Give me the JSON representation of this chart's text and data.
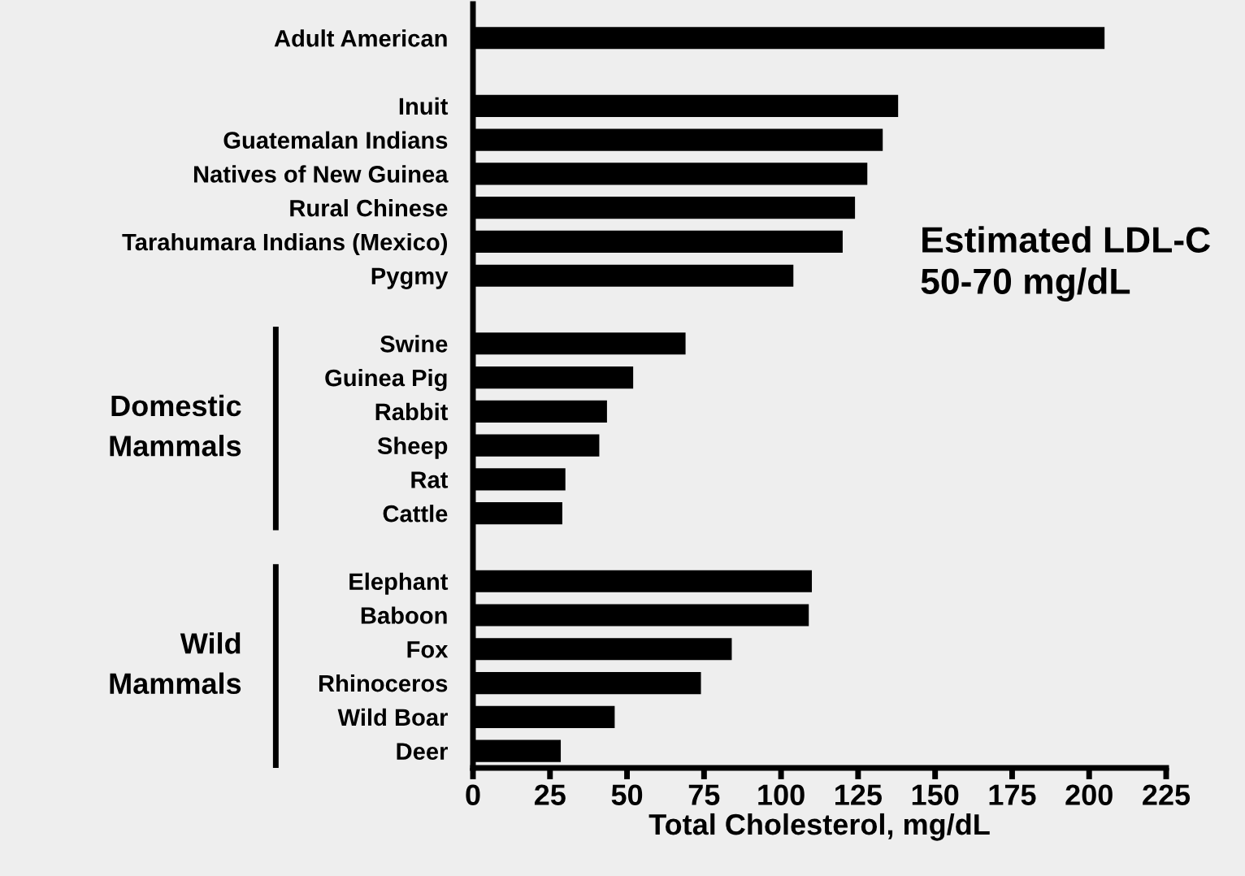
{
  "chart_data": {
    "type": "bar",
    "orientation": "horizontal",
    "xlabel": "Total Cholesterol, mg/dL",
    "categories": [
      "Adult American",
      null,
      "Inuit",
      "Guatemalan Indians",
      "Natives of New Guinea",
      "Rural Chinese",
      "Tarahumara Indians (Mexico)",
      "Pygmy",
      null,
      "Swine",
      "Guinea Pig",
      "Rabbit",
      "Sheep",
      "Rat",
      "Cattle",
      null,
      "Elephant",
      "Baboon",
      "Fox",
      "Rhinoceros",
      "Wild Boar",
      "Deer"
    ],
    "values": [
      205,
      null,
      138,
      133,
      128,
      124,
      120,
      104,
      null,
      69,
      52,
      43.5,
      41,
      30,
      29,
      null,
      110,
      109,
      84,
      74,
      46,
      28.5
    ],
    "color": "#000000",
    "xlim": [
      0,
      225
    ],
    "xticks": [
      0,
      25,
      50,
      75,
      100,
      125,
      150,
      175,
      200,
      225
    ],
    "grid": false,
    "legend": false,
    "annotations": [
      "Estimated LDL-C\n50-70 mg/dL",
      "Domestic\nMammals",
      "Wild\nMammals"
    ]
  }
}
